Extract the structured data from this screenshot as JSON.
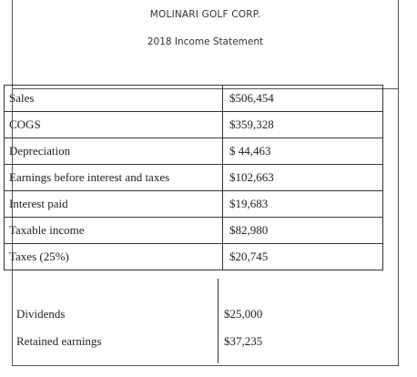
{
  "header": {
    "company": "MOLINARI GOLF CORP.",
    "subtitle": "2018 Income Statement"
  },
  "rows": [
    {
      "label": "Sales",
      "value": "$506,454"
    },
    {
      "label": "COGS",
      "value": "$359,328"
    },
    {
      "label": "Depreciation",
      "value": "$ 44,463"
    },
    {
      "label": "Earnings before interest and taxes",
      "value": "$102,663"
    },
    {
      "label": "Interest paid",
      "value": "$19,683"
    },
    {
      "label": "Taxable income",
      "value": "$82,980"
    },
    {
      "label": "Taxes (25%)",
      "value": "$20,745"
    }
  ],
  "bottom_rows": [
    {
      "label": "Dividends",
      "value": "$25,000"
    },
    {
      "label": "Retained earnings",
      "value": "$37,235"
    }
  ]
}
